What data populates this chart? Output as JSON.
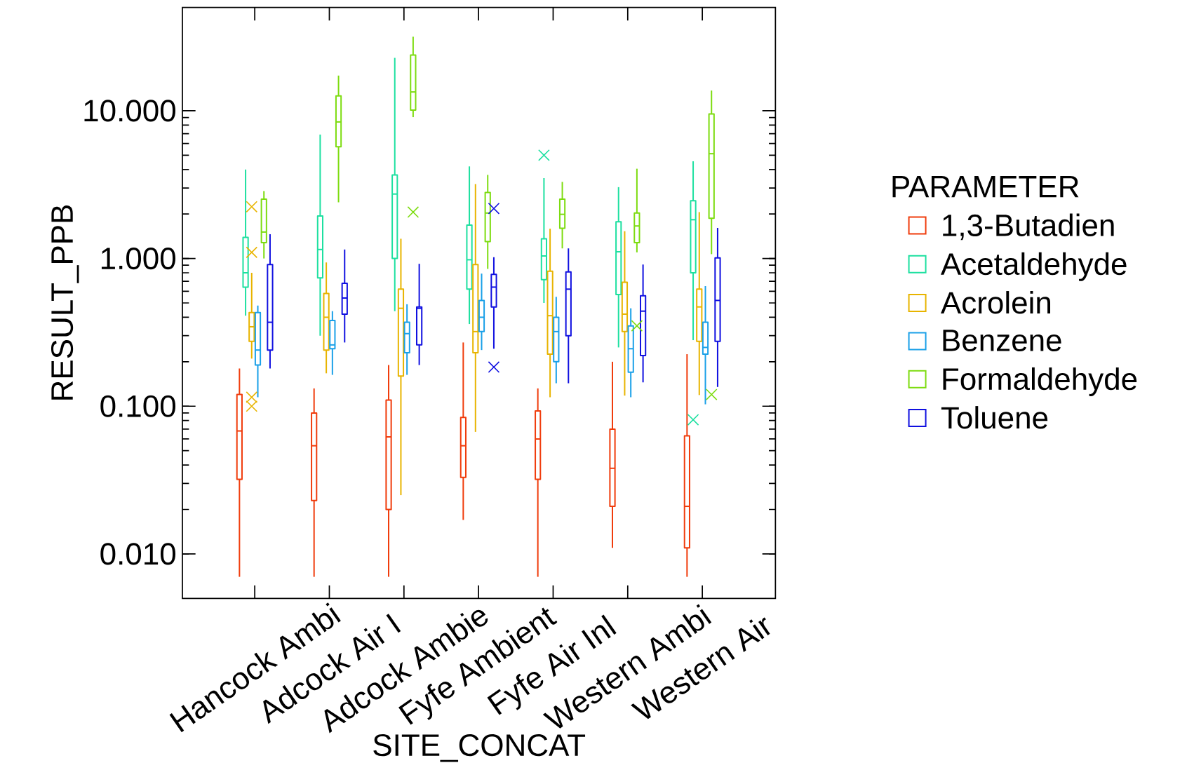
{
  "chart_data": {
    "type": "box",
    "xlabel": "SITE_CONCAT",
    "ylabel": "RESULT_PPB",
    "legend_title": "PARAMETER",
    "legend": "right",
    "log": true,
    "categories": [
      "Hancock Ambi",
      "Adcock Air I",
      "Adcock Ambie",
      "Fyfe Ambient",
      "Fyfe Air Inl",
      "Western Ambi",
      "Western Air"
    ],
    "ylim": [
      0.005,
      50
    ],
    "yticks": [
      {
        "value": 0.01,
        "label": "0.010"
      },
      {
        "value": 0.1,
        "label": "0.100"
      },
      {
        "value": 1,
        "label": "1.000"
      },
      {
        "value": 10,
        "label": "10.000"
      }
    ],
    "series": [
      {
        "name": "1,3-Butadien",
        "color": "#f03c0c",
        "boxes": [
          {
            "low": 0.007,
            "q1": 0.032,
            "median": 0.068,
            "q3": 0.12,
            "high": 0.18
          },
          {
            "low": 0.007,
            "q1": 0.023,
            "median": 0.054,
            "q3": 0.09,
            "high": 0.132
          },
          {
            "low": 0.007,
            "q1": 0.02,
            "median": 0.062,
            "q3": 0.11,
            "high": 0.19
          },
          {
            "low": 0.017,
            "q1": 0.033,
            "median": 0.054,
            "q3": 0.084,
            "high": 0.27
          },
          {
            "low": 0.007,
            "q1": 0.032,
            "median": 0.06,
            "q3": 0.093,
            "high": 0.132
          },
          {
            "low": 0.011,
            "q1": 0.021,
            "median": 0.038,
            "q3": 0.07,
            "high": 0.2
          },
          {
            "low": 0.007,
            "q1": 0.011,
            "median": 0.021,
            "q3": 0.063,
            "high": 0.225
          }
        ]
      },
      {
        "name": "Acetaldehyde",
        "color": "#1de0a0",
        "boxes": [
          {
            "low": 0.41,
            "q1": 0.64,
            "median": 0.8,
            "q3": 1.39,
            "high": 4.0
          },
          {
            "low": 0.3,
            "q1": 0.74,
            "median": 1.15,
            "q3": 1.94,
            "high": 6.9
          },
          {
            "low": 0.44,
            "q1": 1.0,
            "median": 2.73,
            "q3": 3.68,
            "high": 22.8
          },
          {
            "low": 0.36,
            "q1": 0.62,
            "median": 0.98,
            "q3": 1.68,
            "high": 4.2
          },
          {
            "low": 0.5,
            "q1": 0.72,
            "median": 1.04,
            "q3": 1.36,
            "high": 3.5,
            "outliers": [
              5.0
            ]
          },
          {
            "low": 0.25,
            "q1": 0.57,
            "median": 1.11,
            "q3": 1.77,
            "high": 3.04
          },
          {
            "low": 0.28,
            "q1": 0.8,
            "median": 1.83,
            "q3": 2.46,
            "high": 4.55,
            "outliers": [
              0.081
            ]
          }
        ]
      },
      {
        "name": "Acrolein",
        "color": "#e8b400",
        "boxes": [
          {
            "low": 0.21,
            "q1": 0.275,
            "median": 0.345,
            "q3": 0.43,
            "high": 0.8,
            "outliers": [
              2.24,
              1.1,
              0.115,
              0.1
            ]
          },
          {
            "low": 0.167,
            "q1": 0.24,
            "median": 0.4,
            "q3": 0.58,
            "high": 0.94
          },
          {
            "low": 0.025,
            "q1": 0.16,
            "median": 0.46,
            "q3": 0.62,
            "high": 1.36
          },
          {
            "low": 0.067,
            "q1": 0.23,
            "median": 0.32,
            "q3": 0.91,
            "high": 3.19
          },
          {
            "low": 0.115,
            "q1": 0.225,
            "median": 0.41,
            "q3": 0.82,
            "high": 1.59
          },
          {
            "low": 0.118,
            "q1": 0.32,
            "median": 0.42,
            "q3": 0.69,
            "high": 1.53
          },
          {
            "low": 0.119,
            "q1": 0.275,
            "median": 0.47,
            "q3": 0.62,
            "high": 2.06
          }
        ]
      },
      {
        "name": "Benzene",
        "color": "#1aa0e8",
        "boxes": [
          {
            "low": 0.115,
            "q1": 0.19,
            "median": 0.24,
            "q3": 0.43,
            "high": 0.48
          },
          {
            "low": 0.163,
            "q1": 0.245,
            "median": 0.26,
            "q3": 0.38,
            "high": 0.44
          },
          {
            "low": 0.163,
            "q1": 0.23,
            "median": 0.31,
            "q3": 0.37,
            "high": 0.49
          },
          {
            "low": 0.24,
            "q1": 0.32,
            "median": 0.4,
            "q3": 0.52,
            "high": 0.79
          },
          {
            "low": 0.143,
            "q1": 0.2,
            "median": 0.32,
            "q3": 0.4,
            "high": 0.55
          },
          {
            "low": 0.115,
            "q1": 0.17,
            "median": 0.245,
            "q3": 0.35,
            "high": 0.46
          },
          {
            "low": 0.103,
            "q1": 0.225,
            "median": 0.25,
            "q3": 0.37,
            "high": 0.65
          }
        ]
      },
      {
        "name": "Formaldehyde",
        "color": "#7ddc10",
        "boxes": [
          {
            "low": 1.0,
            "q1": 1.28,
            "median": 1.51,
            "q3": 2.52,
            "high": 2.86
          },
          {
            "low": 2.4,
            "q1": 5.7,
            "median": 8.4,
            "q3": 12.6,
            "high": 17.3
          },
          {
            "low": 9.05,
            "q1": 10.1,
            "median": 13.4,
            "q3": 23.8,
            "high": 31.7,
            "outliers": [
              2.06
            ]
          },
          {
            "low": 0.85,
            "q1": 1.3,
            "median": 2.03,
            "q3": 2.8,
            "high": 3.68
          },
          {
            "low": 1.17,
            "q1": 1.6,
            "median": 1.99,
            "q3": 2.52,
            "high": 3.3
          },
          {
            "low": 1.1,
            "q1": 1.28,
            "median": 1.66,
            "q3": 2.03,
            "high": 4.05,
            "outliers": [
              0.35
            ]
          },
          {
            "low": 1.07,
            "q1": 1.87,
            "median": 5.12,
            "q3": 9.5,
            "high": 13.7,
            "outliers": [
              0.12
            ]
          }
        ]
      },
      {
        "name": "Toluene",
        "color": "#1010e0",
        "boxes": [
          {
            "low": 0.18,
            "q1": 0.24,
            "median": 0.37,
            "q3": 0.91,
            "high": 1.46
          },
          {
            "low": 0.27,
            "q1": 0.42,
            "median": 0.54,
            "q3": 0.68,
            "high": 1.15
          },
          {
            "low": 0.19,
            "q1": 0.26,
            "median": 0.46,
            "q3": 0.47,
            "high": 0.92
          },
          {
            "low": 0.245,
            "q1": 0.47,
            "median": 0.64,
            "q3": 0.78,
            "high": 1.02,
            "outliers": [
              2.18,
              0.184
            ]
          },
          {
            "low": 0.143,
            "q1": 0.3,
            "median": 0.62,
            "q3": 0.81,
            "high": 1.17
          },
          {
            "low": 0.145,
            "q1": 0.22,
            "median": 0.44,
            "q3": 0.56,
            "high": 0.91
          },
          {
            "low": 0.135,
            "q1": 0.275,
            "median": 0.52,
            "q3": 1.01,
            "high": 1.61
          }
        ]
      }
    ]
  }
}
